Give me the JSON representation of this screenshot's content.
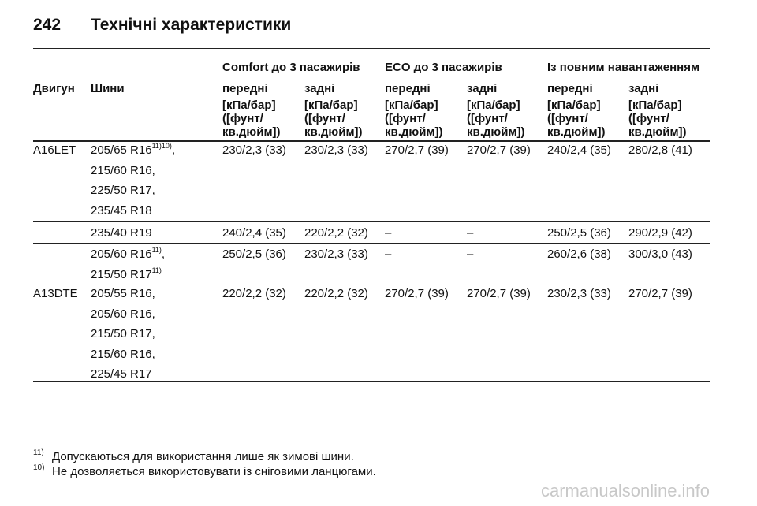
{
  "header": {
    "page_number": "242",
    "title": "Технічні характеристики"
  },
  "table": {
    "group_headers": [
      "Comfort до 3 пасажирів",
      "ECO до 3 пасажирів",
      "Із повним навантаженням"
    ],
    "column_headers": [
      "Двигун",
      "Шини",
      "передні",
      "задні",
      "передні",
      "задні",
      "передні",
      "задні"
    ],
    "units": [
      "[кПа/бар]\n([фунт/\nкв.дюйм])",
      "[кПа/бар]\n([фунт/\nкв.дюйм])",
      "[кПа/бар]\n([фунт/\nкв.дюйм])",
      "[кПа/бар]\n([фунт/\nкв.дюйм])",
      "[кПа/бар]\n([фунт/\nкв.дюйм])",
      "[кПа/бар]\n([фунт/\nкв.дюйм])"
    ],
    "rows": [
      {
        "engine": "A16LET",
        "tires": [
          {
            "size": "205/65 R16",
            "note": "11)10)",
            "punct": ","
          },
          {
            "size": "215/60 R16,"
          },
          {
            "size": "225/50 R17,"
          },
          {
            "size": "235/45 R18"
          }
        ],
        "values": [
          "230/2,3 (33)",
          "230/2,3 (33)",
          "270/2,7 (39)",
          "270/2,7 (39)",
          "240/2,4 (35)",
          "280/2,8 (41)"
        ]
      },
      {
        "tires": [
          {
            "size": "235/40 R19"
          }
        ],
        "values": [
          "240/2,4 (35)",
          "220/2,2 (32)",
          "–",
          "–",
          "250/2,5 (36)",
          "290/2,9 (42)"
        ]
      },
      {
        "tires": [
          {
            "size": "205/60 R16",
            "note": "11)",
            "punct": ","
          },
          {
            "size": "215/50 R17",
            "note": "11)"
          }
        ],
        "values": [
          "250/2,5 (36)",
          "230/2,3 (33)",
          "–",
          "–",
          "260/2,6 (38)",
          "300/3,0 (43)"
        ]
      },
      {
        "engine": "A13DTE",
        "tires": [
          {
            "size": "205/55 R16,"
          },
          {
            "size": "205/60 R16,"
          },
          {
            "size": "215/50 R17,"
          },
          {
            "size": "215/60 R16,"
          },
          {
            "size": "225/45 R17"
          }
        ],
        "values": [
          "220/2,2 (32)",
          "220/2,2 (32)",
          "270/2,7 (39)",
          "270/2,7 (39)",
          "230/2,3 (33)",
          "270/2,7 (39)"
        ]
      }
    ]
  },
  "footnotes": [
    {
      "mark": "11)",
      "text": "Допускаються для використання лише як зимові шини."
    },
    {
      "mark": "10)",
      "text": "Не дозволяється використовувати із сніговими ланцюгами."
    }
  ],
  "watermark": "carmanualsonline.info"
}
